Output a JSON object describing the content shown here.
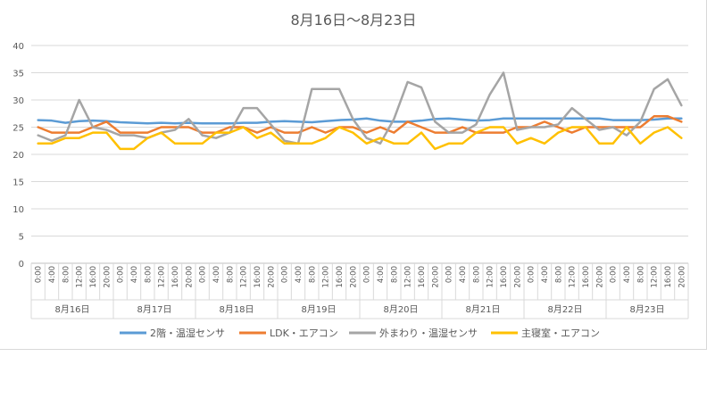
{
  "chart_data": {
    "type": "line",
    "title": "8月16日～8月23日",
    "ylim": [
      0,
      40
    ],
    "yticks": [
      "0",
      "5",
      "10",
      "15",
      "20",
      "25",
      "30",
      "35",
      "40"
    ],
    "hour_labels": [
      "0:00",
      "4:00",
      "8:00",
      "12:00",
      "16:00",
      "20:00"
    ],
    "day_labels": [
      "8月16日",
      "8月17日",
      "8月18日",
      "8月19日",
      "8月20日",
      "8月21日",
      "8月22日",
      "8月23日"
    ],
    "grid": true,
    "legend_position": "bottom",
    "series": [
      {
        "name": "2階・温湿センサ",
        "color": "#5b9bd5",
        "values": [
          26.3,
          26.2,
          25.8,
          26.1,
          26.2,
          26.1,
          25.9,
          25.8,
          25.7,
          25.8,
          25.7,
          25.8,
          25.7,
          25.7,
          25.7,
          25.8,
          25.8,
          26.0,
          26.1,
          26.0,
          25.9,
          26.1,
          26.3,
          26.4,
          26.6,
          26.2,
          26.0,
          26.0,
          26.2,
          26.5,
          26.6,
          26.4,
          26.2,
          26.3,
          26.6,
          26.6,
          26.6,
          26.6,
          26.6,
          26.6,
          26.6,
          26.6,
          26.3,
          26.3,
          26.3,
          26.4,
          26.6,
          26.6
        ]
      },
      {
        "name": "LDK・エアコン",
        "color": "#ed7d31",
        "values": [
          25,
          24,
          24,
          24,
          25,
          26,
          24,
          24,
          24,
          25,
          25,
          25,
          24,
          24,
          25,
          25,
          24,
          25,
          24,
          24,
          25,
          24,
          25,
          25,
          24,
          25,
          24,
          26,
          25,
          24,
          24,
          25,
          24,
          24,
          24,
          25,
          25,
          26,
          25,
          24,
          25,
          25,
          25,
          25,
          25,
          27,
          27,
          26
        ]
      },
      {
        "name": "外まわり・温湿センサ",
        "color": "#a5a5a5",
        "values": [
          23.5,
          22.5,
          23.5,
          30,
          25,
          24.5,
          23.5,
          23.5,
          23,
          24,
          24.5,
          26.5,
          23.5,
          23,
          24,
          28.5,
          28.5,
          25.5,
          22.5,
          22,
          32,
          32,
          32,
          26.5,
          23,
          22,
          26.5,
          33.3,
          32.3,
          26,
          24,
          24,
          25.5,
          31,
          35,
          24.5,
          25,
          25,
          25.5,
          28.5,
          26.5,
          24.5,
          25,
          23.5,
          26,
          32,
          33.8,
          29
        ]
      },
      {
        "name": "主寝室・エアコン",
        "color": "#ffc000",
        "values": [
          22,
          22,
          23,
          23,
          24,
          24,
          21,
          21,
          23,
          24,
          22,
          22,
          22,
          24,
          24,
          25,
          23,
          24,
          22,
          22,
          22,
          23,
          25,
          24,
          22,
          23,
          22,
          22,
          24,
          21,
          22,
          22,
          24,
          25,
          25,
          22,
          23,
          22,
          24,
          25,
          25,
          22,
          22,
          25,
          22,
          24,
          25,
          23
        ]
      }
    ]
  }
}
